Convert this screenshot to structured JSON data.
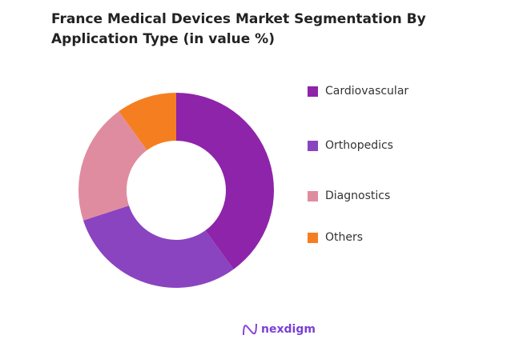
{
  "chart_data": {
    "type": "pie",
    "title": "France Medical Devices Market Segmentation By Application Type (in value %)",
    "donut": true,
    "legend_position": "right",
    "categories": [
      "Cardiovascular",
      "Orthopedics",
      "Diagnostics",
      "Others"
    ],
    "values": [
      40,
      30,
      20,
      10
    ],
    "colors": [
      "#8E24AA",
      "#8A44C0",
      "#E08CA0",
      "#F57F20"
    ]
  },
  "logo": {
    "text": "nexdigm"
  }
}
